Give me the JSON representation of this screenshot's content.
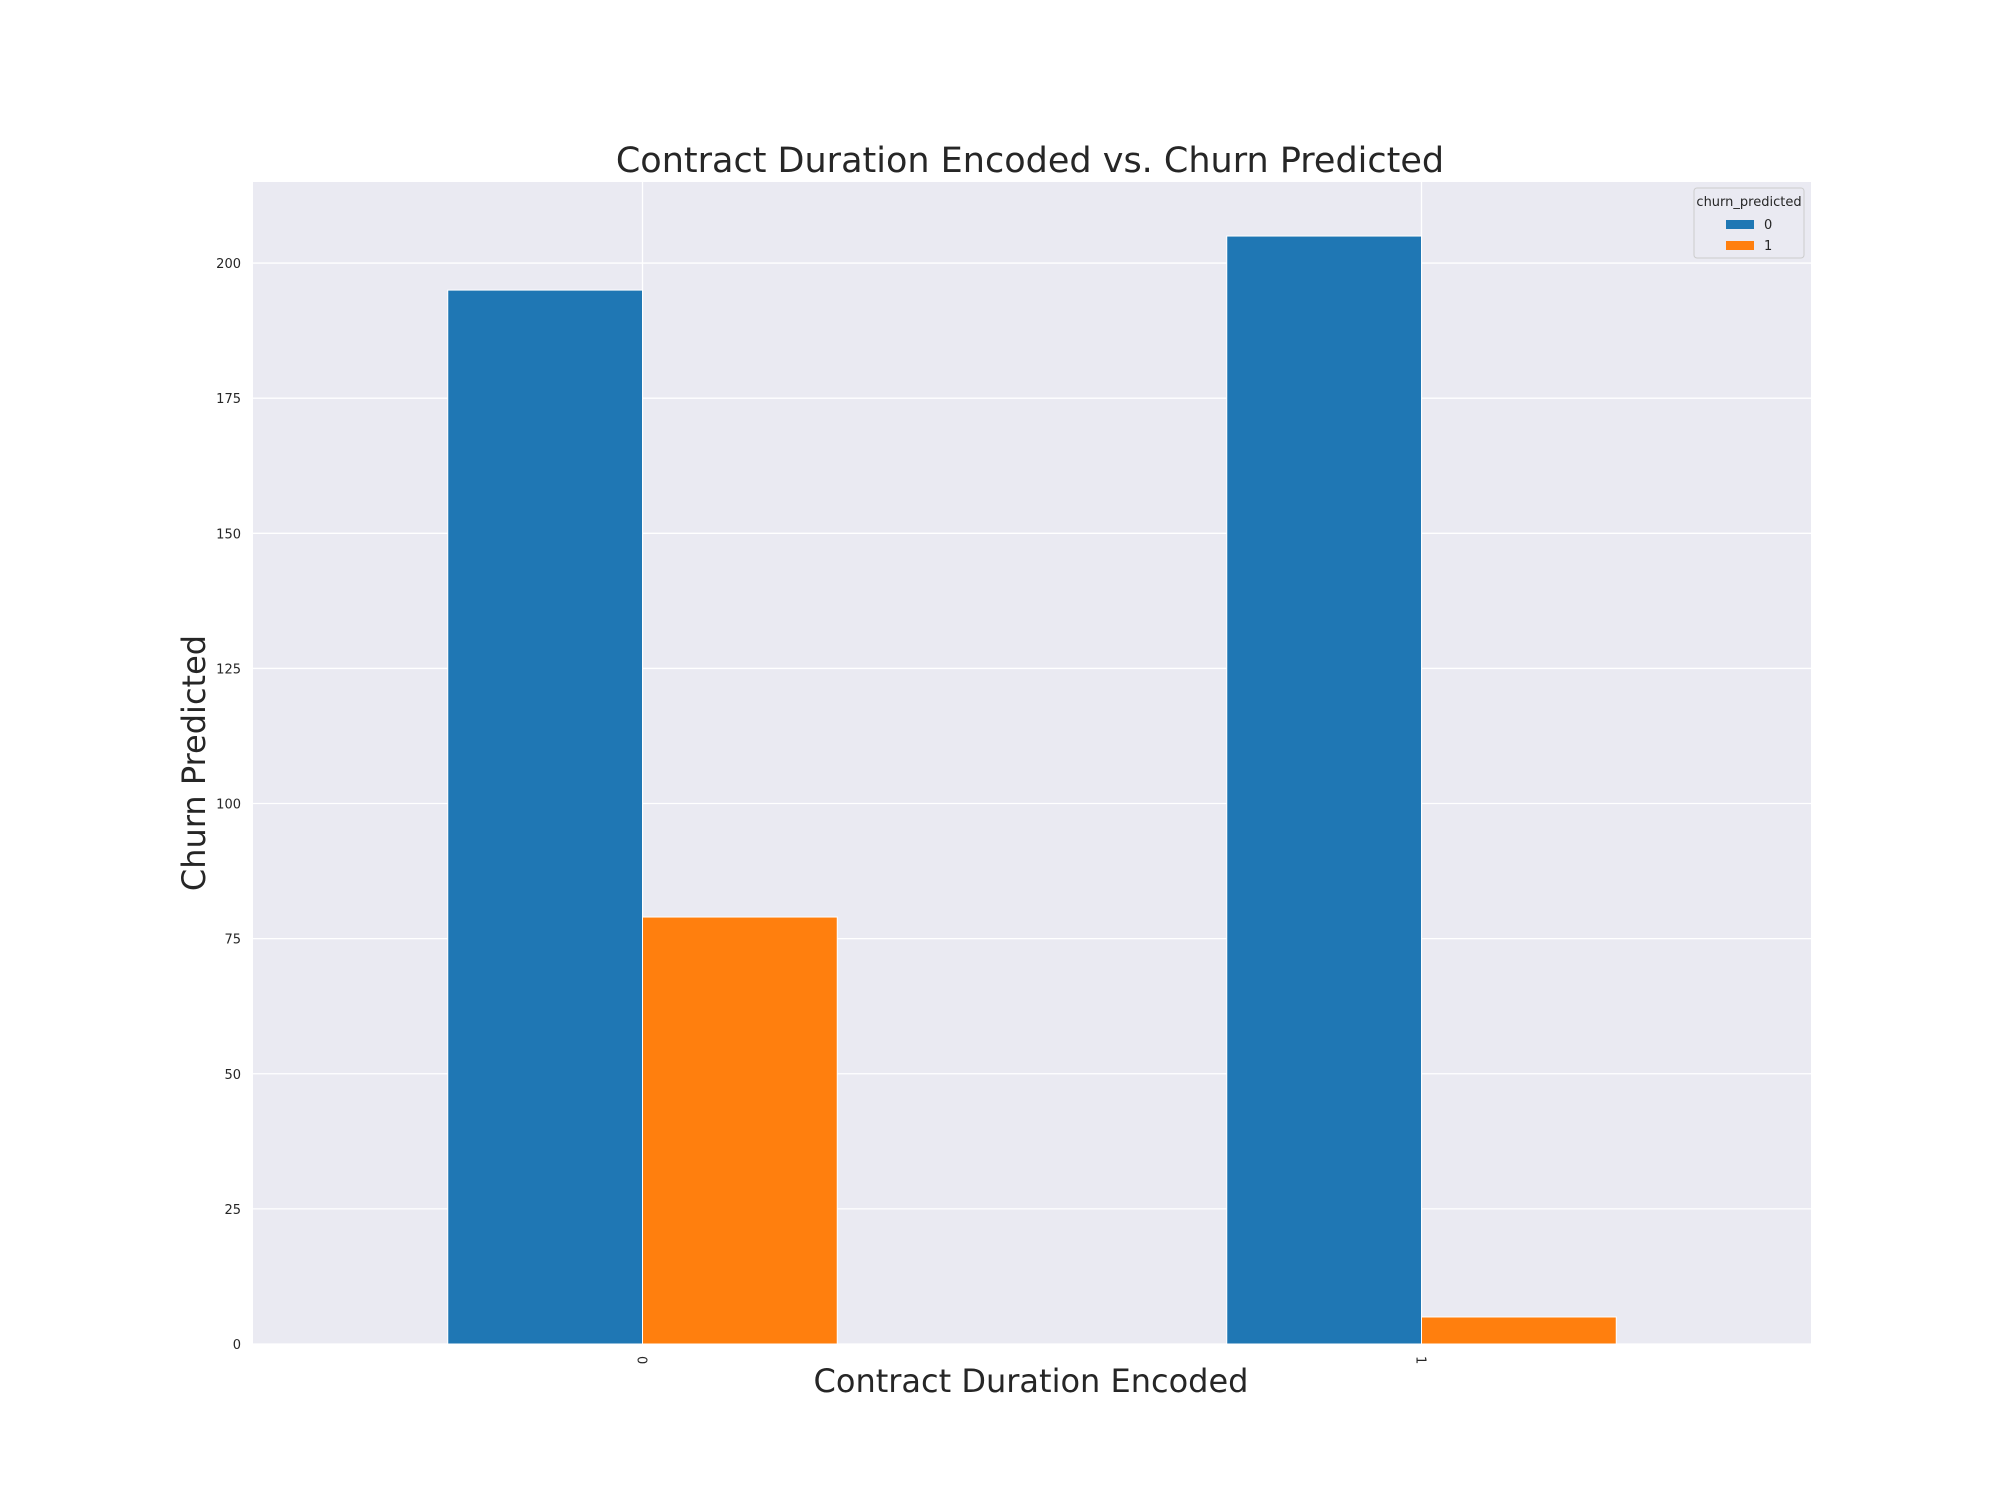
{
  "chart_data": {
    "type": "bar",
    "title": "Contract Duration Encoded vs. Churn Predicted",
    "xlabel": "Contract Duration Encoded",
    "ylabel": "Churn Predicted",
    "categories": [
      "0",
      "1"
    ],
    "series": [
      {
        "name": "0",
        "values": [
          195,
          205
        ],
        "color": "#1f77b4"
      },
      {
        "name": "1",
        "values": [
          79,
          5
        ],
        "color": "#ff7f0e"
      }
    ],
    "ylim": [
      0,
      215
    ],
    "yticks": [
      0,
      25,
      50,
      75,
      100,
      125,
      150,
      175,
      200
    ],
    "grid": true,
    "legend": {
      "title": "churn_predicted",
      "placement": "top-right"
    },
    "background_color": "#eaeaf2"
  }
}
